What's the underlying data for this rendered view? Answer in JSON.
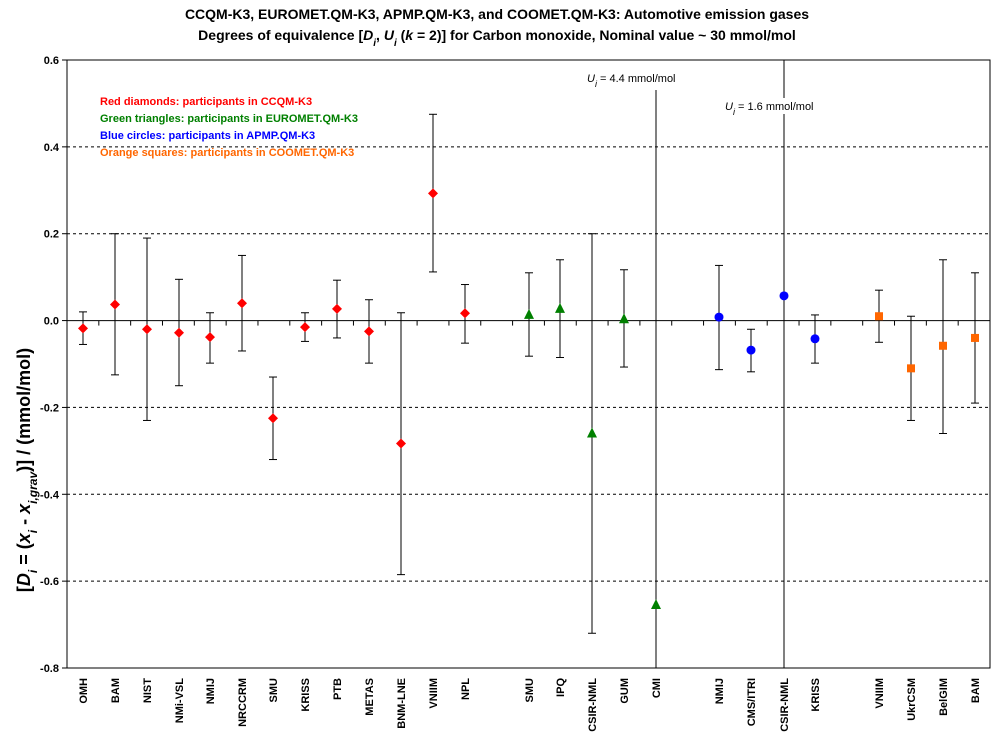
{
  "chart_data": {
    "type": "scatter",
    "title": "CCQM-K3, EUROMET.QM-K3, APMP.QM-K3, and COOMET.QM-K3: Automotive emission gases",
    "subtitle_parts": [
      "Degrees of equivalence [",
      "D",
      "i",
      ", ",
      "U",
      "i",
      " (",
      "k",
      " = 2)] for Carbon monoxide, Nominal value ~ 30 mmol/mol"
    ],
    "ylabel_parts": [
      "[",
      "D",
      "i",
      " =  (",
      "x",
      "i",
      " - ",
      "x",
      "i,grav",
      ")]  /  (mmol/mol)"
    ],
    "ylim": [
      -0.8,
      0.6
    ],
    "yticks": [
      "-0.8",
      "-0.6",
      "-0.4",
      "-0.2",
      "0.0",
      "0.2",
      "0.4",
      "0.6"
    ],
    "grid": "horizontal-dashed",
    "legend": [
      {
        "label": "Red diamonds: participants in CCQM-K3",
        "color": "#ff0000"
      },
      {
        "label": "Green triangles: participants in EUROMET.QM-K3",
        "color": "#008000"
      },
      {
        "label": "Blue circles: participants in APMP.QM-K3",
        "color": "#0000ff"
      },
      {
        "label": "Orange squares: participants in COOMET.QM-K3",
        "color": "#ff6600"
      }
    ],
    "annotations": [
      {
        "prefix": "U",
        "sub": "i",
        "text": " = 4.4 mmol/mol",
        "lab": "CMI"
      },
      {
        "prefix": "U",
        "sub": "i",
        "text": " = 1.6 mmol/mol",
        "lab": "CSIR-NML"
      }
    ],
    "series": [
      {
        "marker": "diamond",
        "color": "#ff0000",
        "points": [
          {
            "lab": "OMH",
            "y": -0.018,
            "low": -0.055,
            "high": 0.02
          },
          {
            "lab": "BAM",
            "y": 0.037,
            "low": -0.125,
            "high": 0.2
          },
          {
            "lab": "NIST",
            "y": -0.02,
            "low": -0.23,
            "high": 0.19
          },
          {
            "lab": "NMi-VSL",
            "y": -0.028,
            "low": -0.15,
            "high": 0.095
          },
          {
            "lab": "NMIJ",
            "y": -0.038,
            "low": -0.098,
            "high": 0.018
          },
          {
            "lab": "NRCCRM",
            "y": 0.04,
            "low": -0.07,
            "high": 0.15
          },
          {
            "lab": "SMU",
            "y": -0.225,
            "low": -0.32,
            "high": -0.13
          },
          {
            "lab": "KRISS",
            "y": -0.015,
            "low": -0.048,
            "high": 0.018
          },
          {
            "lab": "PTB",
            "y": 0.027,
            "low": -0.04,
            "high": 0.093
          },
          {
            "lab": "METAS",
            "y": -0.025,
            "low": -0.098,
            "high": 0.048
          },
          {
            "lab": "BNM-LNE",
            "y": -0.283,
            "low": -0.585,
            "high": 0.018
          },
          {
            "lab": "VNIIM",
            "y": 0.293,
            "low": 0.112,
            "high": 0.475
          },
          {
            "lab": "NPL",
            "y": 0.017,
            "low": -0.052,
            "high": 0.083
          }
        ]
      },
      {
        "marker": "triangle",
        "color": "#008000",
        "points": [
          {
            "lab": "SMU",
            "y": 0.013,
            "low": -0.082,
            "high": 0.11
          },
          {
            "lab": "IPQ",
            "y": 0.027,
            "low": -0.085,
            "high": 0.14
          },
          {
            "lab": "CSIR-NML",
            "y": -0.26,
            "low": -0.72,
            "high": 0.2
          },
          {
            "lab": "GUM",
            "y": 0.003,
            "low": -0.107,
            "high": 0.117
          },
          {
            "lab": "CMI",
            "y": -0.655,
            "low": null,
            "high": null
          }
        ]
      },
      {
        "marker": "circle",
        "color": "#0000ff",
        "points": [
          {
            "lab": "NMIJ",
            "y": 0.008,
            "low": -0.113,
            "high": 0.127
          },
          {
            "lab": "CMS/ITRI",
            "y": -0.068,
            "low": -0.118,
            "high": -0.02
          },
          {
            "lab": "CSIR-NML",
            "y": 0.057,
            "low": null,
            "high": null
          },
          {
            "lab": "KRISS",
            "y": -0.042,
            "low": -0.098,
            "high": 0.013
          }
        ]
      },
      {
        "marker": "square",
        "color": "#ff6600",
        "points": [
          {
            "lab": "VNIIM",
            "y": 0.01,
            "low": -0.05,
            "high": 0.07
          },
          {
            "lab": "UkrCSM",
            "y": -0.11,
            "low": -0.23,
            "high": 0.01
          },
          {
            "lab": "BelGIM",
            "y": -0.058,
            "low": -0.26,
            "high": 0.14
          },
          {
            "lab": "BAM",
            "y": -0.04,
            "low": -0.19,
            "high": 0.11
          }
        ]
      }
    ]
  }
}
